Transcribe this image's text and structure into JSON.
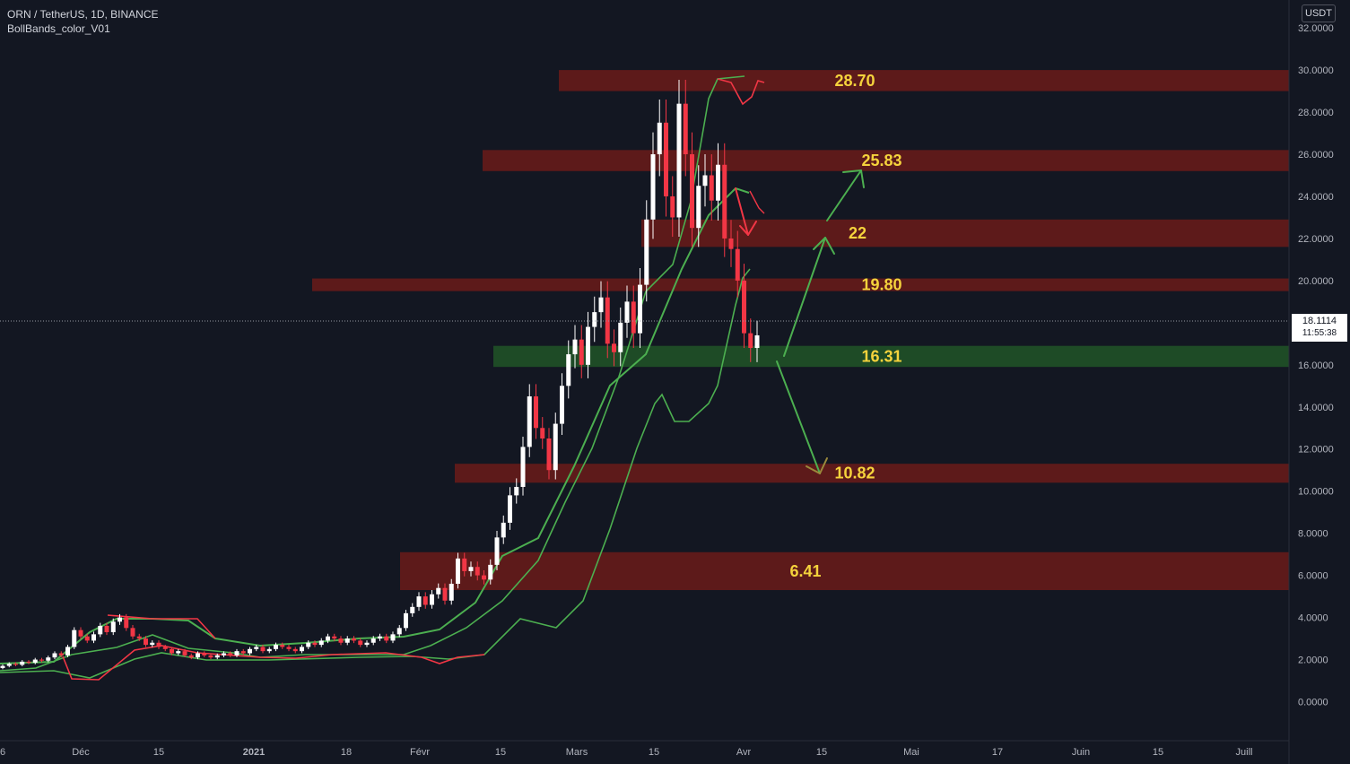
{
  "header": {
    "symbol_line": "ORN / TetherUS, 1D, BINANCE",
    "indicator": "BollBands_color_V01"
  },
  "axis_unit": "USDT",
  "last_price": {
    "value": "18.1114",
    "countdown": "11:55:38"
  },
  "colors": {
    "background": "#131722",
    "resistance_zone": "#5d1a1a",
    "support_zone": "#1e4b26",
    "level_label": "#f5d33c",
    "bull_candle": "#ffffff",
    "bear_candle": "#f23645",
    "band_green": "#4caf50",
    "band_red": "#f23645",
    "projection_arrow": "#4caf50",
    "bearish_arrow": "#f23645",
    "target_arrow": "#9b8a3c"
  },
  "chart_data": {
    "type": "candlestick",
    "title": "ORN / TetherUS, 1D, BINANCE",
    "y_axis": {
      "min": -1,
      "max": 33,
      "ticks": [
        "0.0000",
        "2.0000",
        "4.0000",
        "6.0000",
        "8.0000",
        "10.0000",
        "12.0000",
        "14.0000",
        "16.0000",
        "18.0000",
        "20.0000",
        "22.0000",
        "24.0000",
        "26.0000",
        "28.0000",
        "30.0000",
        "32.0000"
      ]
    },
    "x_axis": {
      "ticks": [
        "6",
        "Déc",
        "15",
        "2021",
        "18",
        "Févr",
        "15",
        "Mars",
        "15",
        "Avr",
        "15",
        "Mai",
        "17",
        "Juin",
        "15",
        "Juill"
      ]
    },
    "levels": [
      {
        "label": "28.70",
        "low": 29.0,
        "high": 30.0,
        "kind": "resistance"
      },
      {
        "label": "25.83",
        "low": 25.2,
        "high": 26.2,
        "kind": "resistance"
      },
      {
        "label": "22",
        "low": 21.6,
        "high": 22.9,
        "kind": "resistance"
      },
      {
        "label": "19.80",
        "low": 19.5,
        "high": 20.1,
        "kind": "resistance"
      },
      {
        "label": "16.31",
        "low": 15.9,
        "high": 16.9,
        "kind": "support"
      },
      {
        "label": "10.82",
        "low": 10.4,
        "high": 11.3,
        "kind": "resistance"
      },
      {
        "label": "6.41",
        "low": 5.3,
        "high": 7.1,
        "kind": "resistance"
      }
    ],
    "last_price": 18.1114,
    "ohlc_note": "daily candles, Nov 2020 - early Apr 2021"
  }
}
